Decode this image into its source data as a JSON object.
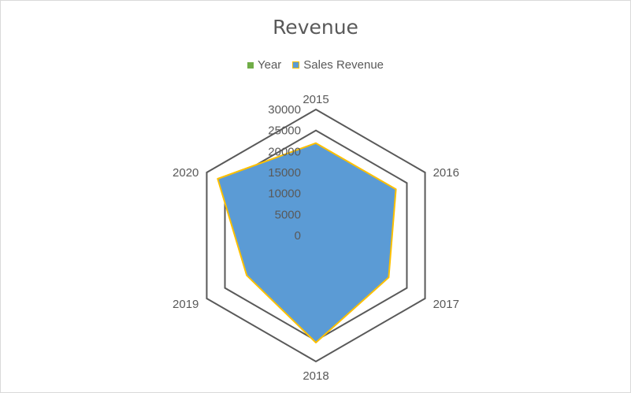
{
  "chart_data": {
    "type": "radar",
    "title": "Revenue",
    "categories": [
      "2015",
      "2016",
      "2017",
      "2018",
      "2019",
      "2020"
    ],
    "series": [
      {
        "name": "Year",
        "values": [
          2015,
          2016,
          2017,
          2018,
          2019,
          2020
        ],
        "color": "#70ad47"
      },
      {
        "name": "Sales Revenue",
        "values": [
          22000,
          22000,
          20000,
          25500,
          19000,
          27000
        ],
        "color": "#5b9bd5",
        "border": "#ffc000"
      }
    ],
    "rlim": [
      0,
      30000
    ],
    "ticks": [
      "0",
      "5000",
      "10000",
      "15000",
      "20000",
      "25000",
      "30000"
    ],
    "grid": true,
    "legend": "top"
  }
}
